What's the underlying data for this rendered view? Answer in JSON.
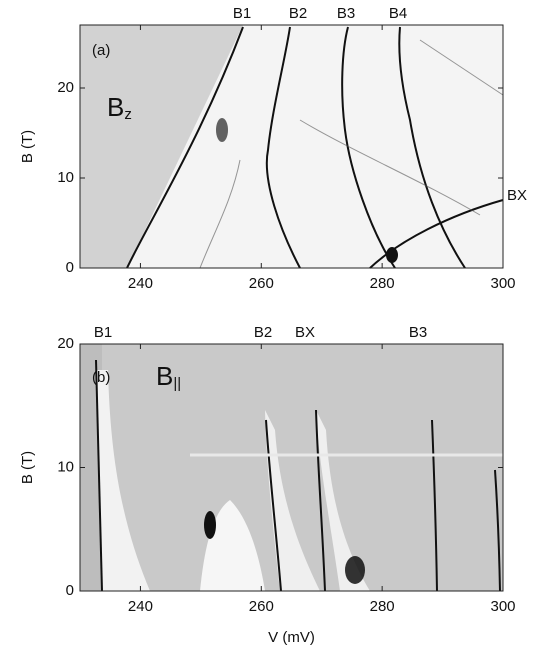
{
  "chart_data": [
    {
      "type": "image",
      "panel_label": "(a)",
      "field_label": {
        "main": "B",
        "sub": "z"
      },
      "ylabel": "B (T)",
      "xlim": [
        230,
        300
      ],
      "xticks": [
        240,
        260,
        280,
        300
      ],
      "ylim": [
        0,
        27
      ],
      "yticks": [
        0,
        10,
        20
      ],
      "annotations": [
        "B1",
        "B2",
        "B3",
        "B4",
        "BX"
      ]
    },
    {
      "type": "image",
      "panel_label": "(b)",
      "field_label": {
        "main": "B",
        "sub": "||"
      },
      "ylabel": "B (T)",
      "xlabel": "V (mV)",
      "xlim": [
        230,
        300
      ],
      "xticks": [
        240,
        260,
        280,
        300
      ],
      "ylim": [
        0,
        20
      ],
      "yticks": [
        0,
        10,
        20
      ],
      "annotations": [
        "B1",
        "B2",
        "BX",
        "B3"
      ]
    }
  ]
}
